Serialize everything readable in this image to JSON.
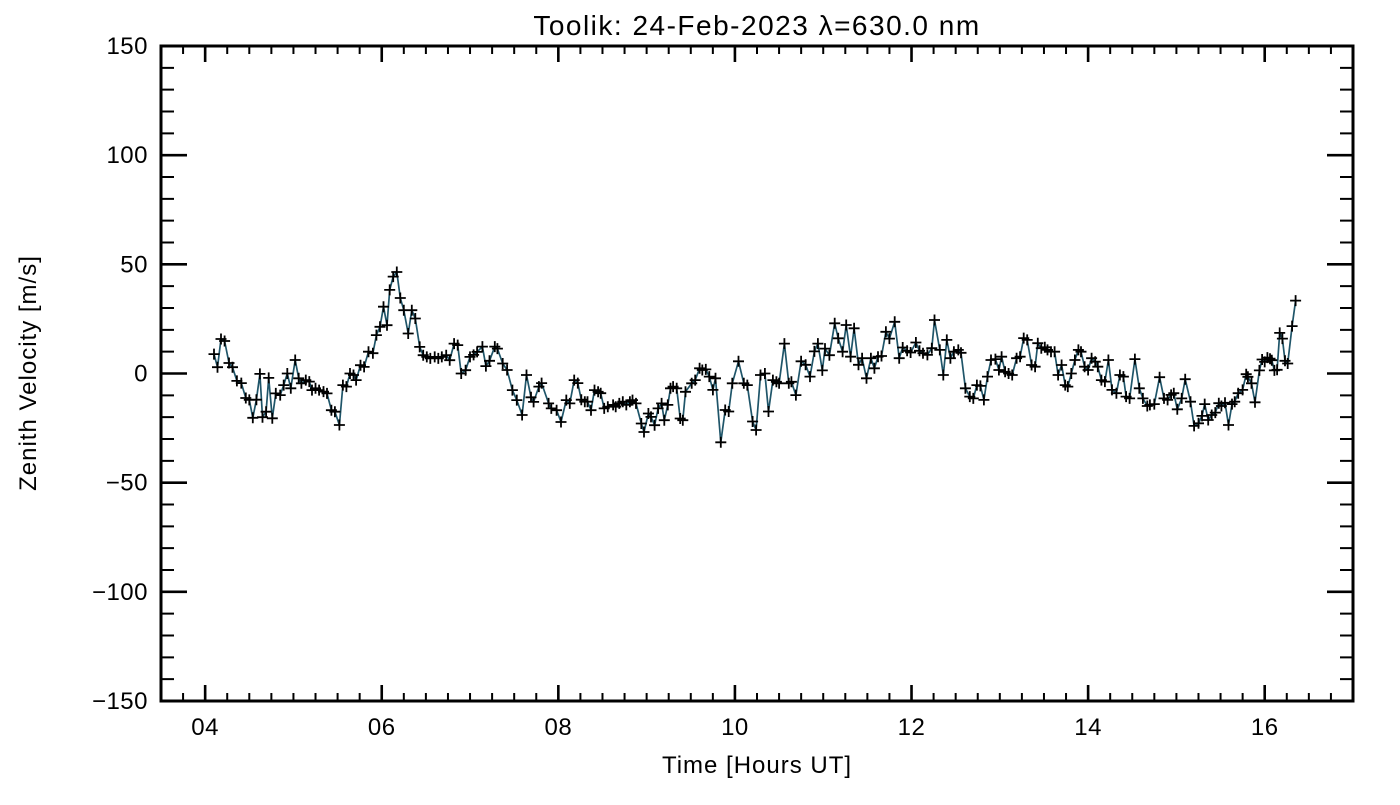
{
  "figure": {
    "background": "#ffffff"
  },
  "chart_data": {
    "type": "line",
    "title": "Toolik: 24-Feb-2023 λ=630.0 nm",
    "xlabel": "Time [Hours UT]",
    "ylabel": "Zenith Velocity [m/s]",
    "xlim": [
      3.5,
      17.0
    ],
    "ylim": [
      -150,
      150
    ],
    "grid": false,
    "legend": "none",
    "line_color": "#1f5569",
    "marker": "plus",
    "marker_color": "#000000",
    "frame_color": "#000000",
    "xticks": {
      "values": [
        4,
        6,
        8,
        10,
        12,
        14,
        16
      ],
      "labels": [
        "04",
        "06",
        "08",
        "10",
        "12",
        "14",
        "16"
      ],
      "minor_step": 0.25
    },
    "yticks": {
      "values": [
        -150,
        -100,
        -50,
        0,
        50,
        100,
        150
      ],
      "labels": [
        "−150",
        "−100",
        "−50",
        "0",
        "50",
        "100",
        "150"
      ],
      "minor_step": 10
    },
    "series_name": "zenith-velocity",
    "points": [
      [
        4.1,
        8.9
      ],
      [
        4.14,
        2.9
      ],
      [
        4.18,
        15.8
      ],
      [
        4.22,
        14.9
      ],
      [
        4.27,
        4.8
      ],
      [
        4.31,
        2.9
      ],
      [
        4.36,
        -3.4
      ],
      [
        4.41,
        -4.4
      ],
      [
        4.46,
        -11.2
      ],
      [
        4.5,
        -12.1
      ],
      [
        4.54,
        -20.3
      ],
      [
        4.58,
        -12.0
      ],
      [
        4.62,
        -0.2
      ],
      [
        4.65,
        -20.0
      ],
      [
        4.69,
        -17.5
      ],
      [
        4.72,
        -2.0
      ],
      [
        4.76,
        -20.5
      ],
      [
        4.8,
        -9.1
      ],
      [
        4.85,
        -9.9
      ],
      [
        4.89,
        -5.3
      ],
      [
        4.93,
        0.0
      ],
      [
        4.97,
        -6.8
      ],
      [
        5.02,
        6.2
      ],
      [
        5.06,
        -2.2
      ],
      [
        5.09,
        -4.5
      ],
      [
        5.14,
        -3.0
      ],
      [
        5.18,
        -3.7
      ],
      [
        5.21,
        -7.6
      ],
      [
        5.25,
        -6.8
      ],
      [
        5.29,
        -7.6
      ],
      [
        5.34,
        -8.3
      ],
      [
        5.38,
        -9.1
      ],
      [
        5.43,
        -16.8
      ],
      [
        5.47,
        -17.5
      ],
      [
        5.52,
        -23.6
      ],
      [
        5.56,
        -5.3
      ],
      [
        5.6,
        -6.0
      ],
      [
        5.64,
        0.0
      ],
      [
        5.68,
        -0.7
      ],
      [
        5.71,
        -3.0
      ],
      [
        5.76,
        3.8
      ],
      [
        5.8,
        3.0
      ],
      [
        5.85,
        10.0
      ],
      [
        5.9,
        9.3
      ],
      [
        5.94,
        17.6
      ],
      [
        5.98,
        21.4
      ],
      [
        6.02,
        30.6
      ],
      [
        6.06,
        22.1
      ],
      [
        6.09,
        38.3
      ],
      [
        6.13,
        44.4
      ],
      [
        6.17,
        46.5
      ],
      [
        6.21,
        34.6
      ],
      [
        6.25,
        29.0
      ],
      [
        6.3,
        18.3
      ],
      [
        6.34,
        29.0
      ],
      [
        6.38,
        25.2
      ],
      [
        6.43,
        12.2
      ],
      [
        6.47,
        8.4
      ],
      [
        6.51,
        7.6
      ],
      [
        6.55,
        6.9
      ],
      [
        6.6,
        7.6
      ],
      [
        6.64,
        6.9
      ],
      [
        6.68,
        7.6
      ],
      [
        6.73,
        8.4
      ],
      [
        6.77,
        6.1
      ],
      [
        6.82,
        13.7
      ],
      [
        6.86,
        13.0
      ],
      [
        6.9,
        0.0
      ],
      [
        6.95,
        1.5
      ],
      [
        7.0,
        7.6
      ],
      [
        7.04,
        8.5
      ],
      [
        7.08,
        9.9
      ],
      [
        7.14,
        12.3
      ],
      [
        7.18,
        3.4
      ],
      [
        7.22,
        5.8
      ],
      [
        7.28,
        12.3
      ],
      [
        7.31,
        11.4
      ],
      [
        7.37,
        4.6
      ],
      [
        7.42,
        1.6
      ],
      [
        7.48,
        -7.6
      ],
      [
        7.53,
        -12.2
      ],
      [
        7.59,
        -19.0
      ],
      [
        7.64,
        -0.7
      ],
      [
        7.69,
        -10.9
      ],
      [
        7.72,
        -13.0
      ],
      [
        7.78,
        -6.0
      ],
      [
        7.81,
        -4.4
      ],
      [
        7.89,
        -13.7
      ],
      [
        7.92,
        -16.0
      ],
      [
        7.98,
        -16.8
      ],
      [
        8.03,
        -22.2
      ],
      [
        8.09,
        -12.2
      ],
      [
        8.13,
        -13.7
      ],
      [
        8.18,
        -3.0
      ],
      [
        8.22,
        -4.4
      ],
      [
        8.26,
        -12.0
      ],
      [
        8.3,
        -12.9
      ],
      [
        8.33,
        -12.9
      ],
      [
        8.37,
        -16.8
      ],
      [
        8.41,
        -7.6
      ],
      [
        8.45,
        -8.4
      ],
      [
        8.48,
        -9.0
      ],
      [
        8.52,
        -16.0
      ],
      [
        8.56,
        -15.2
      ],
      [
        8.62,
        -14.4
      ],
      [
        8.65,
        -15.2
      ],
      [
        8.69,
        -13.7
      ],
      [
        8.73,
        -12.9
      ],
      [
        8.77,
        -14.4
      ],
      [
        8.81,
        -12.9
      ],
      [
        8.84,
        -12.2
      ],
      [
        8.88,
        -13.7
      ],
      [
        8.94,
        -22.9
      ],
      [
        8.97,
        -26.8
      ],
      [
        9.02,
        -18.3
      ],
      [
        9.05,
        -19.9
      ],
      [
        9.09,
        -23.7
      ],
      [
        9.13,
        -16.0
      ],
      [
        9.17,
        -13.7
      ],
      [
        9.2,
        -21.4
      ],
      [
        9.24,
        -14.4
      ],
      [
        9.27,
        -6.8
      ],
      [
        9.3,
        -6.0
      ],
      [
        9.34,
        -6.8
      ],
      [
        9.38,
        -20.6
      ],
      [
        9.41,
        -21.4
      ],
      [
        9.44,
        -8.4
      ],
      [
        9.51,
        -4.5
      ],
      [
        9.55,
        -3.0
      ],
      [
        9.6,
        2.4
      ],
      [
        9.63,
        1.6
      ],
      [
        9.67,
        1.9
      ],
      [
        9.71,
        -1.4
      ],
      [
        9.75,
        -7.5
      ],
      [
        9.78,
        -2.2
      ],
      [
        9.84,
        -31.5
      ],
      [
        9.89,
        -16.7
      ],
      [
        9.93,
        -17.4
      ],
      [
        9.97,
        -4.5
      ],
      [
        10.04,
        5.6
      ],
      [
        10.1,
        -4.5
      ],
      [
        10.14,
        -5.3
      ],
      [
        10.2,
        -22.0
      ],
      [
        10.24,
        -25.9
      ],
      [
        10.29,
        -0.7
      ],
      [
        10.34,
        0.0
      ],
      [
        10.38,
        -17.4
      ],
      [
        10.43,
        -3.0
      ],
      [
        10.47,
        -3.8
      ],
      [
        10.5,
        -4.5
      ],
      [
        10.56,
        13.7
      ],
      [
        10.61,
        -4.5
      ],
      [
        10.64,
        -3.8
      ],
      [
        10.69,
        -9.9
      ],
      [
        10.75,
        5.6
      ],
      [
        10.8,
        4.0
      ],
      [
        10.85,
        -1.4
      ],
      [
        10.9,
        10.1
      ],
      [
        10.94,
        13.7
      ],
      [
        10.99,
        1.4
      ],
      [
        11.02,
        11.4
      ],
      [
        11.07,
        8.4
      ],
      [
        11.13,
        23.0
      ],
      [
        11.17,
        16.1
      ],
      [
        11.22,
        10.0
      ],
      [
        11.26,
        22.2
      ],
      [
        11.31,
        7.7
      ],
      [
        11.35,
        20.7
      ],
      [
        11.4,
        4.0
      ],
      [
        11.44,
        7.0
      ],
      [
        11.49,
        -2.2
      ],
      [
        11.54,
        7.0
      ],
      [
        11.58,
        2.4
      ],
      [
        11.62,
        7.7
      ],
      [
        11.66,
        8.0
      ],
      [
        11.71,
        19.1
      ],
      [
        11.75,
        16.0
      ],
      [
        11.81,
        23.7
      ],
      [
        11.86,
        7.0
      ],
      [
        11.9,
        11.9
      ],
      [
        11.95,
        10.4
      ],
      [
        11.99,
        9.6
      ],
      [
        12.05,
        14.2
      ],
      [
        12.09,
        10.4
      ],
      [
        12.13,
        9.3
      ],
      [
        12.18,
        8.5
      ],
      [
        12.23,
        11.6
      ],
      [
        12.26,
        24.5
      ],
      [
        12.32,
        10.8
      ],
      [
        12.36,
        -0.7
      ],
      [
        12.4,
        15.4
      ],
      [
        12.44,
        7.0
      ],
      [
        12.48,
        10.0
      ],
      [
        12.53,
        10.8
      ],
      [
        12.56,
        9.5
      ],
      [
        12.61,
        -6.8
      ],
      [
        12.66,
        -10.6
      ],
      [
        12.7,
        -11.4
      ],
      [
        12.74,
        -5.3
      ],
      [
        12.78,
        -5.7
      ],
      [
        12.82,
        -12.1
      ],
      [
        12.86,
        -1.4
      ],
      [
        12.9,
        6.2
      ],
      [
        12.95,
        6.6
      ],
      [
        12.99,
        1.6
      ],
      [
        13.02,
        7.7
      ],
      [
        13.06,
        0.8
      ],
      [
        13.1,
        0.0
      ],
      [
        13.14,
        -0.7
      ],
      [
        13.19,
        7.0
      ],
      [
        13.23,
        7.7
      ],
      [
        13.27,
        16.2
      ],
      [
        13.31,
        15.4
      ],
      [
        13.36,
        3.9
      ],
      [
        13.4,
        3.1
      ],
      [
        13.43,
        13.9
      ],
      [
        13.47,
        11.6
      ],
      [
        13.51,
        12.0
      ],
      [
        13.54,
        10.8
      ],
      [
        13.58,
        10.0
      ],
      [
        13.62,
        10.0
      ],
      [
        13.66,
        -0.7
      ],
      [
        13.7,
        3.9
      ],
      [
        13.74,
        -5.3
      ],
      [
        13.77,
        -6.0
      ],
      [
        13.81,
        0.0
      ],
      [
        13.85,
        6.2
      ],
      [
        13.89,
        10.8
      ],
      [
        13.92,
        10.0
      ],
      [
        13.96,
        3.1
      ],
      [
        14.0,
        1.6
      ],
      [
        14.04,
        7.0
      ],
      [
        14.08,
        5.4
      ],
      [
        14.11,
        3.1
      ],
      [
        14.15,
        -3.0
      ],
      [
        14.19,
        -3.7
      ],
      [
        14.23,
        6.2
      ],
      [
        14.27,
        -7.5
      ],
      [
        14.32,
        -9.0
      ],
      [
        14.36,
        -0.7
      ],
      [
        14.4,
        -1.4
      ],
      [
        14.43,
        -10.6
      ],
      [
        14.47,
        -11.4
      ],
      [
        14.53,
        6.6
      ],
      [
        14.58,
        -6.8
      ],
      [
        14.62,
        -11.4
      ],
      [
        14.67,
        -14.9
      ],
      [
        14.7,
        -14.4
      ],
      [
        14.75,
        -14.0
      ],
      [
        14.81,
        -1.7
      ],
      [
        14.86,
        -11.4
      ],
      [
        14.9,
        -12.1
      ],
      [
        14.94,
        -9.8
      ],
      [
        14.97,
        -9.0
      ],
      [
        15.01,
        -16.4
      ],
      [
        15.06,
        -11.4
      ],
      [
        15.1,
        -2.6
      ],
      [
        15.16,
        -12.9
      ],
      [
        15.2,
        -24.0
      ],
      [
        15.25,
        -22.8
      ],
      [
        15.29,
        -19.4
      ],
      [
        15.32,
        -14.0
      ],
      [
        15.36,
        -21.3
      ],
      [
        15.4,
        -19.0
      ],
      [
        15.44,
        -17.9
      ],
      [
        15.48,
        -13.6
      ],
      [
        15.51,
        -14.9
      ],
      [
        15.55,
        -13.4
      ],
      [
        15.59,
        -23.6
      ],
      [
        15.63,
        -14.0
      ],
      [
        15.66,
        -12.9
      ],
      [
        15.7,
        -9.0
      ],
      [
        15.75,
        -7.5
      ],
      [
        15.79,
        -0.3
      ],
      [
        15.81,
        -1.5
      ],
      [
        15.85,
        -4.5
      ],
      [
        15.89,
        -13.2
      ],
      [
        15.94,
        1.4
      ],
      [
        15.97,
        6.4
      ],
      [
        16.0,
        5.3
      ],
      [
        16.03,
        7.3
      ],
      [
        16.06,
        6.8
      ],
      [
        16.08,
        6.1
      ],
      [
        16.11,
        1.4
      ],
      [
        16.14,
        1.7
      ],
      [
        16.17,
        18.6
      ],
      [
        16.2,
        16.0
      ],
      [
        16.23,
        5.8
      ],
      [
        16.26,
        4.6
      ],
      [
        16.31,
        21.7
      ],
      [
        16.35,
        33.4
      ]
    ]
  }
}
